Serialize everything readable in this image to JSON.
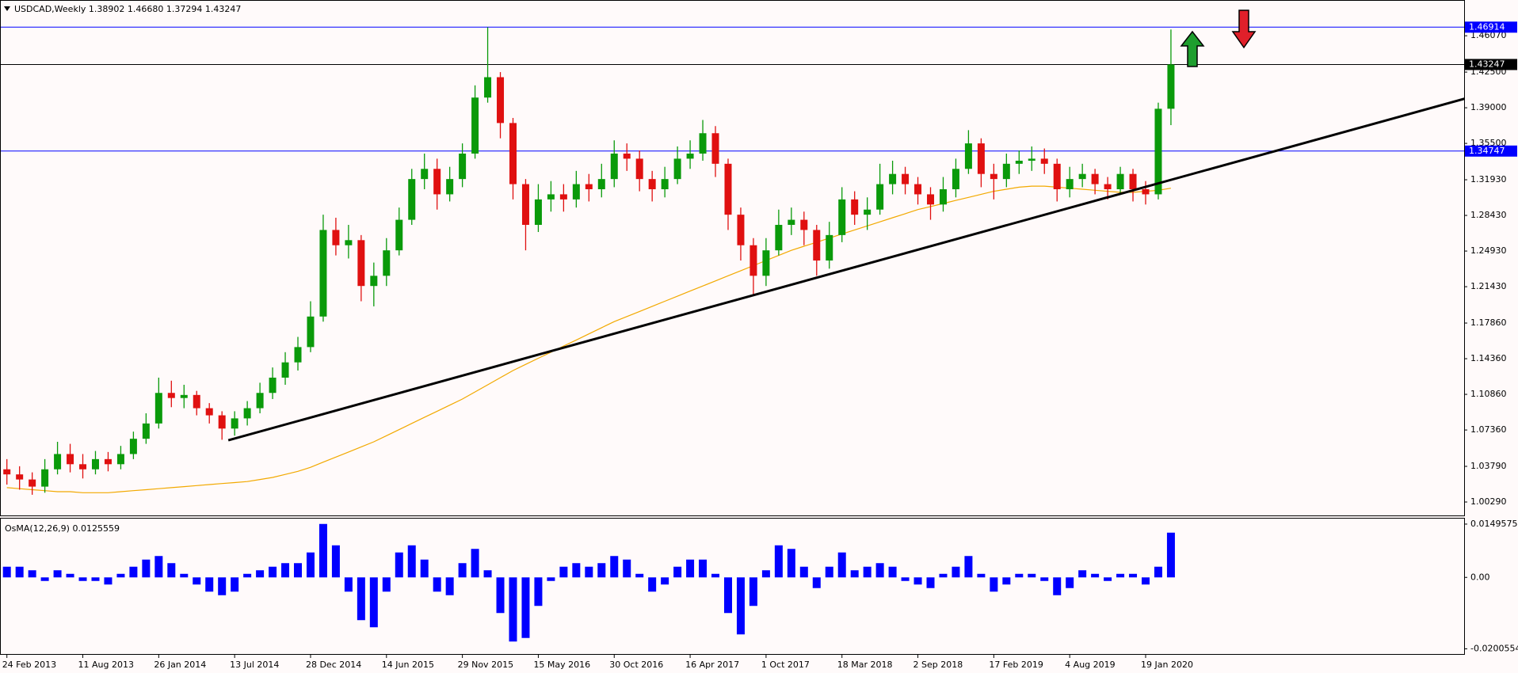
{
  "chart_data": {
    "type": "candlestick",
    "title": "USDCAD,Weekly  1.38902 1.46680 1.37294 1.43247",
    "categories": [
      "24 Feb 2013",
      null,
      null,
      null,
      null,
      null,
      "11 Aug 2013",
      null,
      null,
      null,
      null,
      null,
      "26 Jan 2014",
      null,
      null,
      null,
      null,
      null,
      "13 Jul 2014",
      null,
      null,
      null,
      null,
      null,
      "28 Dec 2014",
      null,
      null,
      null,
      null,
      null,
      "14 Jun 2015",
      null,
      null,
      null,
      null,
      null,
      "29 Nov 2015",
      null,
      null,
      null,
      null,
      null,
      "15 May 2016",
      null,
      null,
      null,
      null,
      null,
      "30 Oct 2016",
      null,
      null,
      null,
      null,
      null,
      "16 Apr 2017",
      null,
      null,
      null,
      null,
      null,
      "1 Oct 2017",
      null,
      null,
      null,
      null,
      null,
      "18 Mar 2018",
      null,
      null,
      null,
      null,
      null,
      "2 Sep 2018",
      null,
      null,
      null,
      null,
      null,
      "17 Feb 2019",
      null,
      null,
      null,
      null,
      null,
      "4 Aug 2019",
      null,
      null,
      null,
      null,
      null,
      "19 Jan 2020",
      null,
      null
    ],
    "open": [
      1.035,
      1.03,
      1.025,
      1.018,
      1.035,
      1.05,
      1.04,
      1.035,
      1.045,
      1.04,
      1.05,
      1.065,
      1.08,
      1.11,
      1.105,
      1.108,
      1.095,
      1.088,
      1.075,
      1.085,
      1.095,
      1.11,
      1.125,
      1.14,
      1.155,
      1.185,
      1.27,
      1.255,
      1.26,
      1.215,
      1.225,
      1.25,
      1.28,
      1.32,
      1.33,
      1.305,
      1.32,
      1.345,
      1.4,
      1.42,
      1.375,
      1.315,
      1.275,
      1.3,
      1.305,
      1.3,
      1.315,
      1.31,
      1.32,
      1.345,
      1.34,
      1.32,
      1.31,
      1.32,
      1.34,
      1.345,
      1.365,
      1.335,
      1.285,
      1.255,
      1.225,
      1.25,
      1.275,
      1.28,
      1.27,
      1.24,
      1.265,
      1.3,
      1.285,
      1.29,
      1.315,
      1.325,
      1.315,
      1.305,
      1.295,
      1.31,
      1.33,
      1.355,
      1.325,
      1.32,
      1.335,
      1.338,
      1.34,
      1.335,
      1.31,
      1.32,
      1.325,
      1.315,
      1.31,
      1.325,
      1.31,
      1.305,
      1.38902
    ],
    "high": [
      1.045,
      1.038,
      1.032,
      1.045,
      1.062,
      1.06,
      1.05,
      1.053,
      1.052,
      1.058,
      1.072,
      1.09,
      1.125,
      1.122,
      1.118,
      1.112,
      1.1,
      1.092,
      1.092,
      1.102,
      1.12,
      1.135,
      1.15,
      1.165,
      1.2,
      1.285,
      1.282,
      1.275,
      1.265,
      1.238,
      1.262,
      1.292,
      1.33,
      1.345,
      1.34,
      1.332,
      1.355,
      1.412,
      1.469,
      1.425,
      1.38,
      1.32,
      1.315,
      1.318,
      1.315,
      1.328,
      1.325,
      1.335,
      1.358,
      1.355,
      1.348,
      1.328,
      1.332,
      1.352,
      1.358,
      1.378,
      1.372,
      1.34,
      1.292,
      1.262,
      1.262,
      1.29,
      1.292,
      1.288,
      1.275,
      1.278,
      1.312,
      1.308,
      1.302,
      1.335,
      1.338,
      1.332,
      1.322,
      1.312,
      1.322,
      1.34,
      1.368,
      1.36,
      1.335,
      1.345,
      1.348,
      1.352,
      1.35,
      1.34,
      1.332,
      1.335,
      1.33,
      1.322,
      1.332,
      1.33,
      1.318,
      1.395,
      1.4668
    ],
    "low": [
      1.02,
      1.015,
      1.01,
      1.012,
      1.03,
      1.032,
      1.026,
      1.03,
      1.033,
      1.035,
      1.045,
      1.06,
      1.075,
      1.096,
      1.095,
      1.088,
      1.08,
      1.064,
      1.068,
      1.078,
      1.09,
      1.104,
      1.118,
      1.132,
      1.15,
      1.18,
      1.245,
      1.242,
      1.2,
      1.195,
      1.215,
      1.245,
      1.275,
      1.31,
      1.29,
      1.298,
      1.312,
      1.34,
      1.395,
      1.36,
      1.3,
      1.25,
      1.268,
      1.288,
      1.288,
      1.292,
      1.298,
      1.302,
      1.312,
      1.328,
      1.308,
      1.298,
      1.302,
      1.315,
      1.33,
      1.338,
      1.322,
      1.27,
      1.24,
      1.206,
      1.215,
      1.245,
      1.265,
      1.255,
      1.225,
      1.232,
      1.258,
      1.275,
      1.27,
      1.285,
      1.305,
      1.305,
      1.295,
      1.28,
      1.288,
      1.302,
      1.325,
      1.312,
      1.3,
      1.312,
      1.325,
      1.328,
      1.325,
      1.298,
      1.302,
      1.312,
      1.305,
      1.3,
      1.305,
      1.298,
      1.295,
      1.3,
      1.37294
    ],
    "close": [
      1.03,
      1.025,
      1.018,
      1.035,
      1.05,
      1.04,
      1.035,
      1.045,
      1.04,
      1.05,
      1.065,
      1.08,
      1.11,
      1.105,
      1.108,
      1.095,
      1.088,
      1.075,
      1.085,
      1.095,
      1.11,
      1.125,
      1.14,
      1.155,
      1.185,
      1.27,
      1.255,
      1.26,
      1.215,
      1.225,
      1.25,
      1.28,
      1.32,
      1.33,
      1.305,
      1.32,
      1.345,
      1.4,
      1.42,
      1.375,
      1.315,
      1.275,
      1.3,
      1.305,
      1.3,
      1.315,
      1.31,
      1.32,
      1.345,
      1.34,
      1.32,
      1.31,
      1.32,
      1.34,
      1.345,
      1.365,
      1.335,
      1.285,
      1.255,
      1.225,
      1.25,
      1.275,
      1.28,
      1.27,
      1.24,
      1.265,
      1.3,
      1.285,
      1.29,
      1.315,
      1.325,
      1.315,
      1.305,
      1.295,
      1.31,
      1.33,
      1.355,
      1.325,
      1.32,
      1.335,
      1.338,
      1.34,
      1.335,
      1.31,
      1.32,
      1.325,
      1.315,
      1.31,
      1.325,
      1.31,
      1.305,
      1.389,
      1.43247
    ],
    "up_color": "#0a9a0a",
    "down_color": "#e01010",
    "moving_average": {
      "color": "#f2a900",
      "values": [
        1.017,
        1.016,
        1.015,
        1.014,
        1.013,
        1.013,
        1.012,
        1.012,
        1.012,
        1.013,
        1.014,
        1.015,
        1.016,
        1.017,
        1.018,
        1.019,
        1.02,
        1.021,
        1.022,
        1.023,
        1.025,
        1.027,
        1.03,
        1.033,
        1.037,
        1.042,
        1.047,
        1.052,
        1.057,
        1.062,
        1.068,
        1.074,
        1.08,
        1.086,
        1.092,
        1.098,
        1.104,
        1.111,
        1.118,
        1.125,
        1.132,
        1.138,
        1.144,
        1.15,
        1.156,
        1.162,
        1.168,
        1.174,
        1.18,
        1.185,
        1.19,
        1.195,
        1.2,
        1.205,
        1.21,
        1.215,
        1.22,
        1.225,
        1.23,
        1.235,
        1.24,
        1.245,
        1.25,
        1.254,
        1.258,
        1.262,
        1.266,
        1.27,
        1.274,
        1.278,
        1.282,
        1.286,
        1.29,
        1.293,
        1.296,
        1.299,
        1.302,
        1.305,
        1.308,
        1.31,
        1.312,
        1.313,
        1.313,
        1.312,
        1.311,
        1.31,
        1.309,
        1.308,
        1.307,
        1.307,
        1.308,
        1.309,
        1.311
      ]
    },
    "trendline": {
      "color": "#000000",
      "x": [
        17.5,
        115.3
      ],
      "y": [
        1.0635,
        1.3992
      ]
    },
    "hlines": [
      {
        "value": 1.46914,
        "color": "#0000ff"
      },
      {
        "value": 1.43247,
        "color": "#000000"
      },
      {
        "value": 1.34747,
        "color": "#0000ff"
      }
    ],
    "ylim": [
      0.9897,
      1.4958
    ],
    "yticks": [
      {
        "value": 1.4607,
        "label": "1.46070"
      },
      {
        "value": 1.425,
        "label": "1.42500"
      },
      {
        "value": 1.39,
        "label": "1.39000"
      },
      {
        "value": 1.355,
        "label": "1.35500"
      },
      {
        "value": 1.3193,
        "label": "1.31930"
      },
      {
        "value": 1.2843,
        "label": "1.28430"
      },
      {
        "value": 1.2493,
        "label": "1.24930"
      },
      {
        "value": 1.2143,
        "label": "1.21430"
      },
      {
        "value": 1.1786,
        "label": "1.17860"
      },
      {
        "value": 1.1436,
        "label": "1.14360"
      },
      {
        "value": 1.1086,
        "label": "1.10860"
      },
      {
        "value": 1.0736,
        "label": "1.07360"
      },
      {
        "value": 1.0379,
        "label": "1.03790"
      },
      {
        "value": 1.0029,
        "label": "1.00290"
      }
    ],
    "grid": false,
    "indicator": {
      "type": "bar",
      "title": "OsMA(12,26,9) 0.0125559",
      "color": "#0000ff",
      "values": [
        0.003,
        0.003,
        0.002,
        -0.001,
        0.002,
        0.001,
        -0.001,
        -0.001,
        -0.002,
        0.001,
        0.003,
        0.005,
        0.006,
        0.004,
        0.001,
        -0.002,
        -0.004,
        -0.005,
        -0.004,
        0.001,
        0.002,
        0.003,
        0.004,
        0.004,
        0.007,
        0.015,
        0.009,
        -0.004,
        -0.012,
        -0.014,
        -0.004,
        0.007,
        0.009,
        0.005,
        -0.004,
        -0.005,
        0.004,
        0.008,
        0.002,
        -0.01,
        -0.018,
        -0.017,
        -0.008,
        -0.001,
        0.003,
        0.004,
        0.003,
        0.004,
        0.006,
        0.005,
        0.001,
        -0.004,
        -0.002,
        0.003,
        0.005,
        0.005,
        0.001,
        -0.01,
        -0.016,
        -0.008,
        0.002,
        0.009,
        0.008,
        0.003,
        -0.003,
        0.003,
        0.007,
        0.002,
        0.003,
        0.004,
        0.003,
        -0.001,
        -0.002,
        -0.003,
        0.001,
        0.003,
        0.006,
        0.001,
        -0.004,
        -0.002,
        0.001,
        0.001,
        -0.001,
        -0.005,
        -0.003,
        0.002,
        0.001,
        -0.001,
        0.001,
        0.001,
        -0.002,
        0.003,
        0.0125559
      ],
      "ylim": [
        -0.0215,
        0.0165
      ],
      "yticks": [
        0.0149575,
        {
          "value": 0,
          "label": "0.00"
        },
        -0.0200554
      ]
    }
  }
}
